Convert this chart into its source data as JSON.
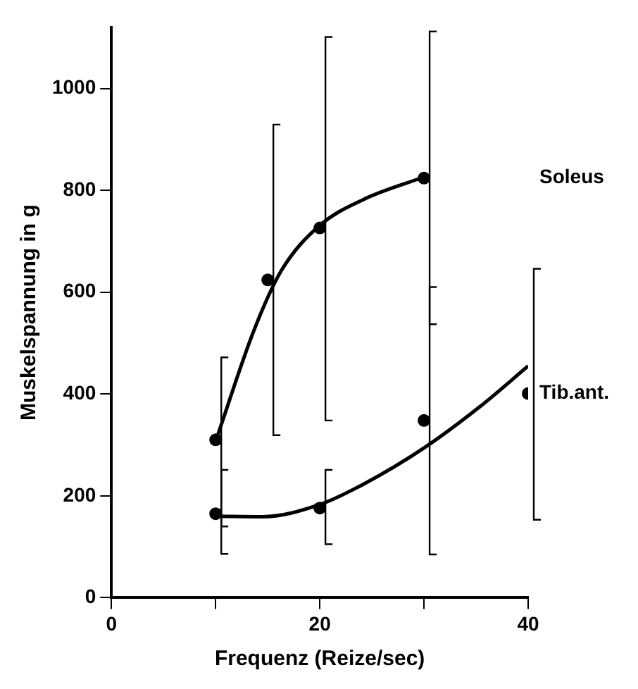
{
  "chart_data": {
    "type": "scatter",
    "xlabel": "Frequenz (Reize/sec)",
    "ylabel": "Muskelspannung in g",
    "xlim": [
      0,
      40
    ],
    "xticks": [
      0,
      {
        "value": 10,
        "label": null
      },
      20,
      {
        "value": 30,
        "label": null
      },
      40
    ],
    "ylim": [
      0,
      1120
    ],
    "yticks": [
      0,
      200,
      400,
      600,
      800,
      1000
    ],
    "grid": false,
    "legend": false,
    "marker": "circle",
    "series": [
      {
        "name": "Soleus",
        "color": "#000000",
        "x": [
          10,
          15,
          20,
          30
        ],
        "values": [
          310,
          624,
          726,
          824
        ],
        "errors": [
          [
            140,
            472
          ],
          [
            319,
            929
          ],
          [
            348,
            1101
          ],
          [
            537,
            1112
          ]
        ]
      },
      {
        "name": "Tib.ant.",
        "color": "#000000",
        "x": [
          10,
          20,
          30,
          40
        ],
        "values": [
          165,
          176,
          348,
          401
        ],
        "errors": [
          [
            86,
            251
          ],
          [
            105,
            251
          ],
          [
            85,
            610
          ],
          [
            153,
            646
          ]
        ]
      },
      {
        "type": "line",
        "marker": "none",
        "color": "#000000",
        "x": [
          10,
          13.7,
          16.3,
          20,
          24.2,
          29.7
        ],
        "values": [
          307,
          526,
          642,
          731,
          782,
          824
        ]
      },
      {
        "type": "line",
        "marker": "none",
        "color": "#000000",
        "x": [
          10,
          14.5,
          20,
          24.2,
          30,
          35.3,
          40
        ],
        "values": [
          160,
          159,
          183,
          223,
          294,
          374,
          455
        ]
      }
    ]
  }
}
